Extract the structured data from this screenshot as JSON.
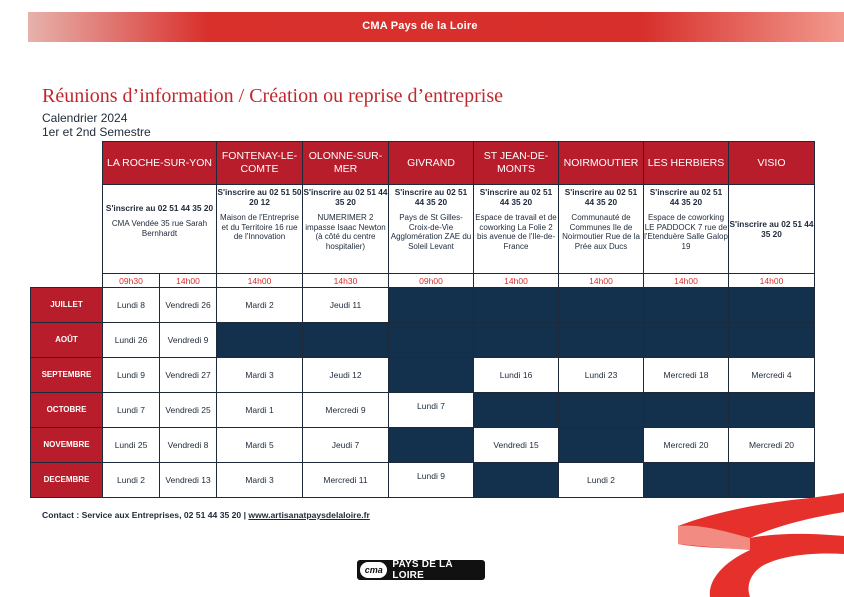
{
  "header": {
    "banner": "CMA Pays de la Loire"
  },
  "title": "Réunions d’information / Création ou reprise d’entreprise",
  "subtitle1": "Calendrier 2024",
  "subtitle2": "1er et 2nd Semestre",
  "colors": {
    "brand_red": "#b81d2b",
    "navy": "#13304d",
    "time_red": "#d42f2b"
  },
  "venues": [
    {
      "city": "LA ROCHE-SUR-YON",
      "reg": "S'inscrire au 02 51 44 35 20",
      "addr": "CMA Vendée 35 rue Sarah Bernhardt",
      "times": [
        "09h30",
        "14h00"
      ]
    },
    {
      "city": "FONTENAY-LE-COMTE",
      "reg": "S'inscrire au 02 51 50 20 12",
      "addr": "Maison de l'Entreprise et du Territoire 16 rue de l'Innovation",
      "times": [
        "14h00"
      ]
    },
    {
      "city": "OLONNE-SUR-MER",
      "reg": "S'inscrire au 02 51 44 35 20",
      "addr": "NUMERIMER 2 impasse Isaac Newton (à côté du centre hospitalier)",
      "times": [
        "14h30"
      ]
    },
    {
      "city": "GIVRAND",
      "reg": "S'inscrire au 02 51 44 35 20",
      "addr": "Pays de St Gilles-Croix-de-Vie Agglomération ZAE du Soleil Levant",
      "times": [
        "09h00"
      ]
    },
    {
      "city": "ST JEAN-DE-MONTS",
      "reg": "S'inscrire au 02 51 44 35 20",
      "addr": "Espace de travail et de coworking La Folie 2 bis avenue de l'Ile-de-France",
      "times": [
        "14h00"
      ]
    },
    {
      "city": "NOIRMOUTIER",
      "reg": "S'inscrire au 02 51 44 35 20",
      "addr": "Communauté de Communes Ile de Noirmoutier Rue de la Prée aux Ducs",
      "times": [
        "14h00"
      ]
    },
    {
      "city": "LES HERBIERS",
      "reg": "S'inscrire au 02 51 44 35 20",
      "addr": "Espace de coworking LE PADDOCK 7 rue de l'Etenduère Salle Galop 19",
      "times": [
        "14h00"
      ]
    },
    {
      "city": "VISIO",
      "reg": "S'inscrire au 02 51 44 35 20",
      "addr": "",
      "times": [
        "14h00"
      ]
    }
  ],
  "months": [
    {
      "name": "JUILLET",
      "cells": [
        "Lundi 8",
        "Vendredi 26",
        "Mardi 2",
        "Jeudi 11",
        "",
        "",
        "",
        "",
        ""
      ]
    },
    {
      "name": "AOÛT",
      "cells": [
        "Lundi 26",
        "Vendredi 9",
        "",
        "",
        "",
        "",
        "",
        "",
        ""
      ]
    },
    {
      "name": "SEPTEMBRE",
      "cells": [
        "Lundi 9",
        "Vendredi 27",
        "Mardi 3",
        "Jeudi 12",
        "",
        "Lundi 16",
        "Lundi 23",
        "Mercredi 18",
        "Mercredi 4"
      ]
    },
    {
      "name": "OCTOBRE",
      "cells": [
        "Lundi 7",
        "Vendredi 25",
        "Mardi 1",
        "Mercredi 9",
        "Lundi 7",
        "",
        "",
        "",
        ""
      ]
    },
    {
      "name": "NOVEMBRE",
      "cells": [
        "Lundi 25",
        "Vendredi 8",
        "Mardi 5",
        "Jeudi 7",
        "",
        "Vendredi 15",
        "",
        "Mercredi 20",
        "Mercredi 20"
      ]
    },
    {
      "name": "DECEMBRE",
      "cells": [
        "Lundi 2",
        "Vendredi 13",
        "Mardi 3",
        "Mercredi 11",
        "Lundi 9",
        "",
        "Lundi 2",
        "",
        ""
      ]
    }
  ],
  "contact": {
    "text": "Contact : Service aux Entreprises, 02 51 44 35 20 | ",
    "url": "www.artisanatpaysdelaloire.fr"
  },
  "logo": {
    "mark": "cma",
    "text": "PAYS DE LA LOIRE"
  }
}
